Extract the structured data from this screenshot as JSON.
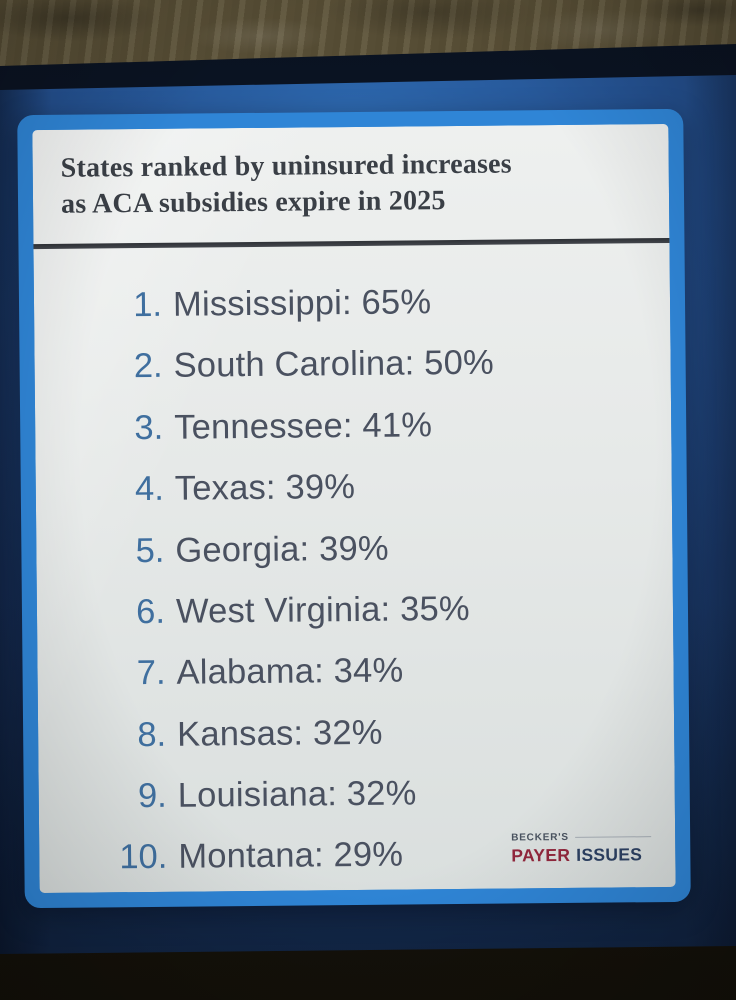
{
  "slide": {
    "title_lines": [
      "States ranked by uninsured increases",
      "as ACA subsidies expire in 2025"
    ],
    "items": [
      {
        "rank": "1.",
        "text": "Mississippi: 65%"
      },
      {
        "rank": "2.",
        "text": "South Carolina: 50%"
      },
      {
        "rank": "3.",
        "text": "Tennessee: 41%"
      },
      {
        "rank": "4.",
        "text": "Texas: 39%"
      },
      {
        "rank": "5.",
        "text": "Georgia: 39%"
      },
      {
        "rank": "6.",
        "text": "West Virginia: 35%"
      },
      {
        "rank": "7.",
        "text": "Alabama: 34%"
      },
      {
        "rank": "8.",
        "text": "Kansas: 32%"
      },
      {
        "rank": "9.",
        "text": "Louisiana: 32%"
      },
      {
        "rank": "10.",
        "text": "Montana: 29%"
      }
    ]
  },
  "logo": {
    "brand": "BECKER'S",
    "word_primary": "PAYER",
    "word_secondary": "ISSUES"
  },
  "colors": {
    "frame_blue": "#2f85d6",
    "title_color": "#3a3f46",
    "rank_blue": "#3f6f9f",
    "item_color": "#4a5160",
    "payer_red": "#92273d",
    "issues_navy": "#2d4163"
  },
  "chart_data": {
    "type": "table",
    "title": "States ranked by uninsured increases as ACA subsidies expire in 2025",
    "categories": [
      "Mississippi",
      "South Carolina",
      "Tennessee",
      "Texas",
      "Georgia",
      "West Virginia",
      "Alabama",
      "Kansas",
      "Louisiana",
      "Montana"
    ],
    "values": [
      65,
      50,
      41,
      39,
      39,
      35,
      34,
      32,
      32,
      29
    ],
    "unit": "%"
  }
}
